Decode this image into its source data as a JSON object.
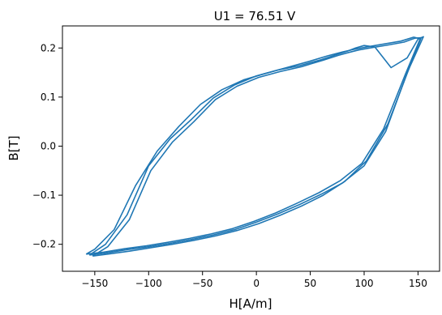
{
  "chart_data": {
    "type": "line",
    "title": "U1 = 76.51 V",
    "xlabel": "H[A/m]",
    "ylabel": "B[T]",
    "xlim": [
      -180,
      170
    ],
    "ylim": [
      -0.255,
      0.245
    ],
    "xticks": [
      -150,
      -100,
      -50,
      0,
      50,
      100,
      150
    ],
    "xtick_labels": [
      "−150",
      "−100",
      "−50",
      "0",
      "50",
      "100",
      "150"
    ],
    "yticks": [
      -0.2,
      -0.1,
      0.0,
      0.1,
      0.2
    ],
    "ytick_labels": [
      "−0.2",
      "−0.1",
      "0.0",
      "0.1",
      "0.2"
    ],
    "grid": false,
    "line_color": "#1f77b4",
    "series": [
      {
        "x": [
          -155,
          -140,
          -120,
          -100,
          -80,
          -60,
          -40,
          -20,
          0,
          20,
          40,
          60,
          80,
          100,
          120,
          140,
          155,
          150,
          140,
          125,
          110,
          100,
          92,
          85,
          75,
          60,
          40,
          20,
          0,
          -20,
          -40,
          -60,
          -80,
          -100,
          -120,
          -140,
          -155
        ],
        "y": [
          -0.222,
          -0.218,
          -0.211,
          -0.205,
          -0.198,
          -0.19,
          -0.181,
          -0.17,
          -0.155,
          -0.138,
          -0.119,
          -0.098,
          -0.075,
          -0.04,
          0.03,
          0.15,
          0.223,
          0.218,
          0.18,
          0.16,
          0.202,
          0.205,
          0.2,
          0.194,
          0.187,
          0.176,
          0.164,
          0.155,
          0.143,
          0.125,
          0.098,
          0.055,
          0.015,
          -0.04,
          -0.14,
          -0.2,
          -0.222
        ]
      },
      {
        "x": [
          -152,
          -138,
          -118,
          -98,
          -78,
          -58,
          -38,
          -18,
          2,
          22,
          42,
          62,
          82,
          102,
          122,
          142,
          153,
          147,
          137,
          122,
          105,
          95,
          86,
          76,
          62,
          42,
          22,
          2,
          -18,
          -38,
          -58,
          -78,
          -98,
          -118,
          -138,
          -152
        ],
        "y": [
          -0.224,
          -0.22,
          -0.214,
          -0.207,
          -0.2,
          -0.192,
          -0.183,
          -0.172,
          -0.158,
          -0.141,
          -0.122,
          -0.1,
          -0.072,
          -0.03,
          0.045,
          0.16,
          0.221,
          0.22,
          0.212,
          0.206,
          0.2,
          0.196,
          0.191,
          0.185,
          0.175,
          0.162,
          0.152,
          0.14,
          0.122,
          0.095,
          0.05,
          0.008,
          -0.05,
          -0.15,
          -0.205,
          -0.224
        ]
      },
      {
        "x": [
          -158,
          -142,
          -122,
          -102,
          -82,
          -62,
          -42,
          -22,
          -2,
          18,
          38,
          58,
          78,
          98,
          118,
          138,
          152,
          146,
          134,
          118,
          102,
          90,
          80,
          66,
          48,
          28,
          8,
          -12,
          -32,
          -52,
          -72,
          -92,
          -112,
          -132,
          -150,
          -158
        ],
        "y": [
          -0.22,
          -0.216,
          -0.209,
          -0.203,
          -0.196,
          -0.188,
          -0.179,
          -0.168,
          -0.153,
          -0.136,
          -0.116,
          -0.095,
          -0.07,
          -0.035,
          0.035,
          0.145,
          0.219,
          0.222,
          0.214,
          0.208,
          0.202,
          0.197,
          0.192,
          0.184,
          0.172,
          0.16,
          0.148,
          0.135,
          0.115,
          0.085,
          0.04,
          -0.01,
          -0.08,
          -0.17,
          -0.21,
          -0.22
        ]
      }
    ]
  }
}
